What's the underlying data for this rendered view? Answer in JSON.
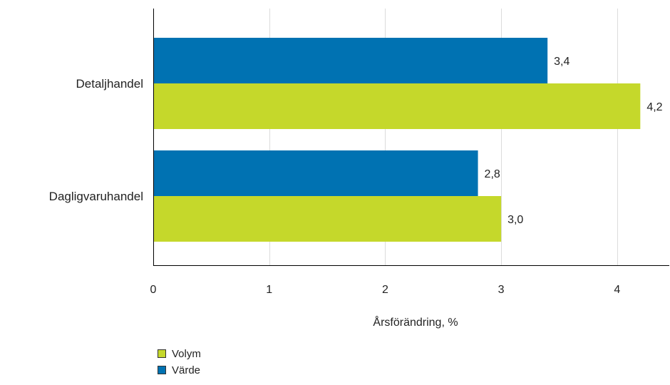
{
  "colors": {
    "Värde": "#0072b2",
    "Volym": "#c5d82b",
    "grid": "#dcdcdc",
    "axis": "#000000"
  },
  "chart_data": {
    "type": "bar",
    "orientation": "horizontal",
    "categories": [
      "Detaljhandel",
      "Dagligvaruhandel"
    ],
    "series": [
      {
        "name": "Värde",
        "values": [
          3.4,
          2.8
        ],
        "labels": [
          "3,4",
          "2,8"
        ]
      },
      {
        "name": "Volym",
        "values": [
          4.2,
          3.0
        ],
        "labels": [
          "4,2",
          "3,0"
        ]
      }
    ],
    "xlabel": "Årsförändring, %",
    "ylabel": "",
    "xlim": [
      0,
      4.45
    ],
    "xticks": [
      0,
      1,
      2,
      3,
      4
    ],
    "grid": true,
    "legend_position": "bottom-left",
    "legend": [
      "Volym",
      "Värde"
    ]
  }
}
